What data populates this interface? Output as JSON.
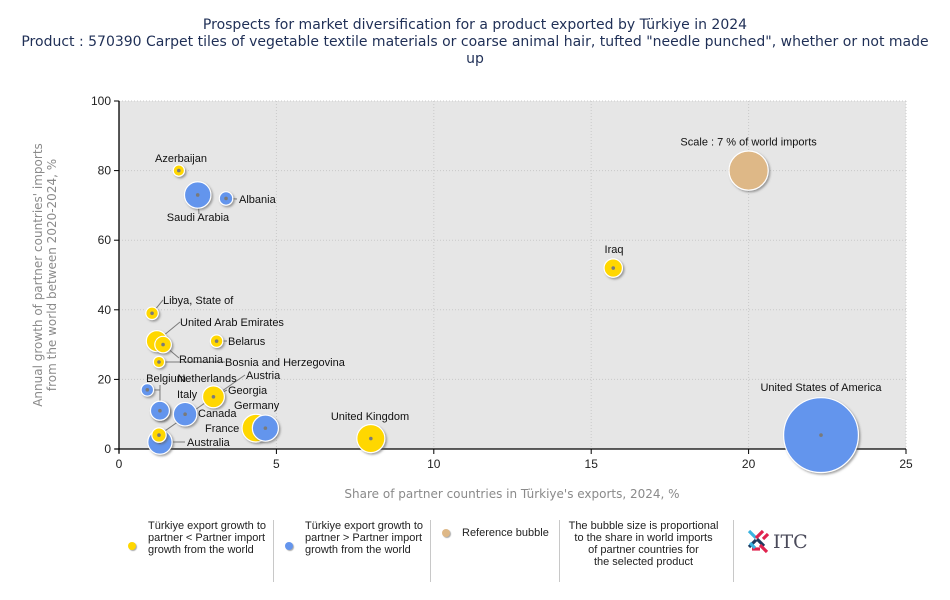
{
  "title_line1": "Prospects for market diversification for a product exported by Türkiye in 2024",
  "title_line2": "Product : 570390 Carpet tiles of vegetable textile materials or coarse animal hair, tufted \"needle punched\", whether or not made up",
  "chart_data": {
    "type": "scatter",
    "subtype": "bubble",
    "title": "Prospects for market diversification for a product exported by Türkiye in 2024",
    "subtitle": "Product : 570390 Carpet tiles of vegetable textile materials or coarse animal hair, tufted \"needle punched\", whether or not made up",
    "xlabel": "Share of partner countries in Türkiye's exports, 2024, %",
    "ylabel": "Annual growth of partner countries' imports from the world between 2020-2024, %",
    "xlim": [
      0,
      25
    ],
    "ylim": [
      0,
      100
    ],
    "xticks": [
      0,
      5,
      10,
      15,
      20,
      25
    ],
    "yticks": [
      0,
      20,
      40,
      60,
      80,
      100
    ],
    "grid": true,
    "colors": {
      "yellow": "#ffd700",
      "blue": "#6495ed",
      "reference": "#deb887",
      "plot_bg": "#e6e6e6",
      "leader": "#7a7a7a"
    },
    "points": [
      {
        "name": "Azerbaijan",
        "x": 1.9,
        "y": 80,
        "size": 0.2,
        "group": "yellow"
      },
      {
        "name": "Saudi Arabia",
        "x": 2.5,
        "y": 73,
        "size": 3.0,
        "group": "blue"
      },
      {
        "name": "Albania",
        "x": 3.4,
        "y": 72,
        "size": 0.4,
        "group": "blue"
      },
      {
        "name": "Iraq",
        "x": 15.7,
        "y": 52,
        "size": 1.1,
        "group": "yellow"
      },
      {
        "name": "Libya, State of",
        "x": 1.05,
        "y": 39,
        "size": 0.3,
        "group": "yellow"
      },
      {
        "name": "United Arab Emirates",
        "x": 1.2,
        "y": 31,
        "size": 1.6,
        "group": "yellow"
      },
      {
        "name": "Romania",
        "x": 1.4,
        "y": 30,
        "size": 0.8,
        "group": "yellow"
      },
      {
        "name": "Belarus",
        "x": 3.1,
        "y": 31,
        "size": 0.3,
        "group": "yellow"
      },
      {
        "name": "Bosnia and Herzegovina",
        "x": 1.27,
        "y": 25,
        "size": 0.2,
        "group": "yellow"
      },
      {
        "name": "Belgium",
        "x": 0.9,
        "y": 17,
        "size": 0.3,
        "group": "blue"
      },
      {
        "name": "Netherlands",
        "x": 1.3,
        "y": 11,
        "size": 1.2,
        "group": "blue"
      },
      {
        "name": "Italy",
        "x": 1.3,
        "y": 11,
        "size": 1.2,
        "group": "blue"
      },
      {
        "name": "Georgia",
        "x": 3.0,
        "y": 15,
        "size": 1.8,
        "group": "yellow"
      },
      {
        "name": "Canada",
        "x": 2.1,
        "y": 10,
        "size": 2.2,
        "group": "blue"
      },
      {
        "name": "Germany",
        "x": 4.35,
        "y": 6,
        "size": 3.4,
        "group": "yellow"
      },
      {
        "name": "France",
        "x": 4.65,
        "y": 6,
        "size": 2.9,
        "group": "blue"
      },
      {
        "name": "Austria",
        "x": 1.27,
        "y": 4,
        "size": 0.5,
        "group": "yellow"
      },
      {
        "name": "Australia",
        "x": 1.3,
        "y": 2,
        "size": 2.4,
        "group": "blue"
      },
      {
        "name": "United Kingdom",
        "x": 8.0,
        "y": 3,
        "size": 3.5,
        "group": "yellow"
      },
      {
        "name": "United States of America",
        "x": 22.3,
        "y": 4,
        "size": 34.0,
        "group": "blue"
      }
    ],
    "reference_bubble": {
      "label": "Scale : 7 % of world imports",
      "x": 20,
      "y": 80,
      "size": 7,
      "group": "reference"
    },
    "legend": {
      "placement": "bottom",
      "items": [
        {
          "label": "Türkiye export growth to partner < Partner import growth from the world",
          "color": "#ffd700"
        },
        {
          "label": "Türkiye export growth to partner > Partner import growth from the world",
          "color": "#6495ed"
        },
        {
          "label": "Reference bubble",
          "color": "#deb887"
        }
      ],
      "note": "The bubble size is proportional to the share in world imports of partner countries for the selected product"
    }
  },
  "legend": {
    "item1_l1": "Türkiye export growth to",
    "item1_l2": "partner < Partner import",
    "item1_l3": "growth from the world",
    "item2_l1": "Türkiye export growth to",
    "item2_l2": "partner > Partner import",
    "item2_l3": "growth from the world",
    "item3": "Reference bubble",
    "note_l1": "The bubble size is proportional",
    "note_l2": "to the share in world imports",
    "note_l3": "of partner countries for",
    "note_l4": "the selected product"
  },
  "logo_text": "ITC"
}
